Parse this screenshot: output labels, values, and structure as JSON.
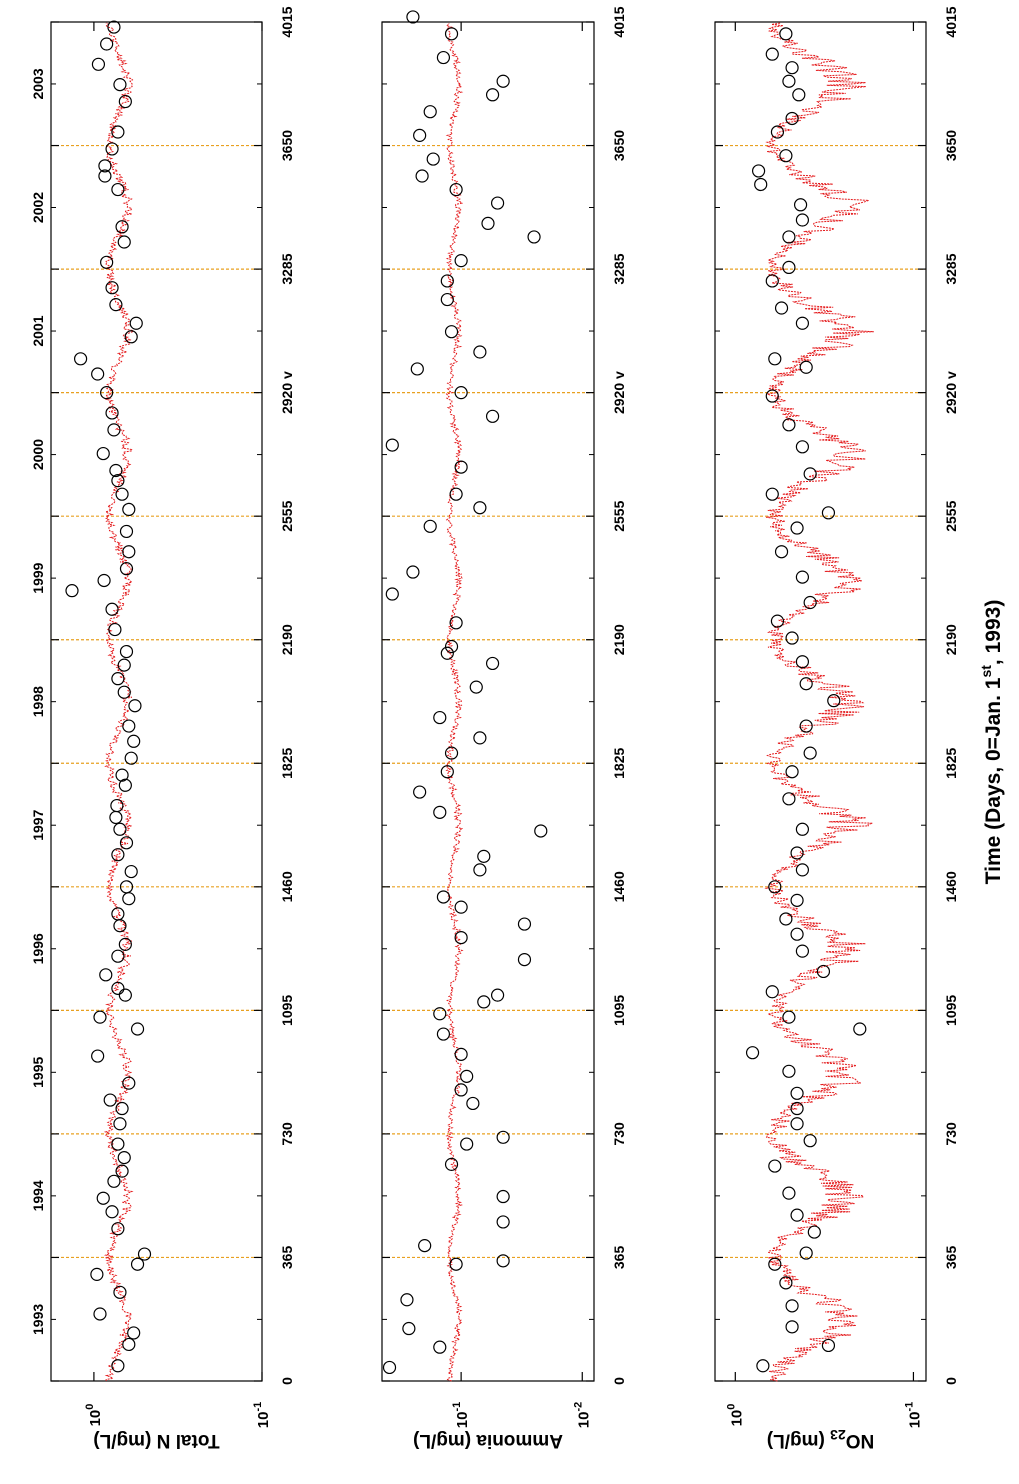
{
  "figure": {
    "time_axis_label": "Time (Days, 0=Jan. 1st, 1993)",
    "time_axis_label_main": "Time (Days, 0=Jan. 1",
    "time_axis_label_sup": "st",
    "time_axis_label_tail": ", 1993)",
    "day_ticks": [
      {
        "value": 0,
        "label": "0"
      },
      {
        "value": 365,
        "label": "365"
      },
      {
        "value": 730,
        "label": "730"
      },
      {
        "value": 1095,
        "label": "1095"
      },
      {
        "value": 1460,
        "label": "1460"
      },
      {
        "value": 1825,
        "label": "1825"
      },
      {
        "value": 2190,
        "label": "2190"
      },
      {
        "value": 2555,
        "label": "2555"
      },
      {
        "value": 2920,
        "label": "2920 v"
      },
      {
        "value": 3285,
        "label": "3285"
      },
      {
        "value": 3650,
        "label": "3650"
      },
      {
        "value": 4015,
        "label": "4015"
      }
    ],
    "year_ticks": [
      {
        "value": 182,
        "label": "1993"
      },
      {
        "value": 547,
        "label": "1994"
      },
      {
        "value": 912,
        "label": "1995"
      },
      {
        "value": 1277,
        "label": "1996"
      },
      {
        "value": 1642,
        "label": "1997"
      },
      {
        "value": 2007,
        "label": "1998"
      },
      {
        "value": 2372,
        "label": "1999"
      },
      {
        "value": 2737,
        "label": "2000"
      },
      {
        "value": 3102,
        "label": "2001"
      },
      {
        "value": 3467,
        "label": "2002"
      },
      {
        "value": 3832,
        "label": "2003"
      }
    ],
    "colors": {
      "model": "#e41a1c",
      "observed": "#000000",
      "year_line": "#e8a020"
    }
  },
  "chart_data": [
    {
      "type": "scatter",
      "ylabel": "Total N (mg/L)",
      "yscale": "log",
      "ylim": [
        0.1,
        1.8
      ],
      "yticks": [
        {
          "value": 1,
          "base": "10",
          "exp": "0"
        },
        {
          "value": 0.1,
          "base": "10",
          "exp": "-1"
        }
      ],
      "xlim": [
        0,
        4015
      ],
      "model_mean": 0.72,
      "model_amp": 0.09,
      "observed": [
        [
          45,
          0.72
        ],
        [
          108,
          0.62
        ],
        [
          142,
          0.58
        ],
        [
          198,
          0.92
        ],
        [
          262,
          0.7
        ],
        [
          315,
          0.96
        ],
        [
          345,
          0.55
        ],
        [
          375,
          0.5
        ],
        [
          450,
          0.72
        ],
        [
          500,
          0.78
        ],
        [
          540,
          0.88
        ],
        [
          590,
          0.76
        ],
        [
          620,
          0.68
        ],
        [
          660,
          0.66
        ],
        [
          700,
          0.72
        ],
        [
          760,
          0.7
        ],
        [
          805,
          0.68
        ],
        [
          830,
          0.8
        ],
        [
          880,
          0.62
        ],
        [
          960,
          0.95
        ],
        [
          1040,
          0.55
        ],
        [
          1075,
          0.92
        ],
        [
          1140,
          0.65
        ],
        [
          1160,
          0.72
        ],
        [
          1200,
          0.85
        ],
        [
          1255,
          0.72
        ],
        [
          1290,
          0.65
        ],
        [
          1345,
          0.7
        ],
        [
          1380,
          0.72
        ],
        [
          1425,
          0.62
        ],
        [
          1460,
          0.64
        ],
        [
          1505,
          0.6
        ],
        [
          1555,
          0.72
        ],
        [
          1590,
          0.64
        ],
        [
          1630,
          0.7
        ],
        [
          1665,
          0.74
        ],
        [
          1700,
          0.73
        ],
        [
          1760,
          0.65
        ],
        [
          1790,
          0.68
        ],
        [
          1840,
          0.6
        ],
        [
          1890,
          0.58
        ],
        [
          1935,
          0.62
        ],
        [
          1995,
          0.57
        ],
        [
          2035,
          0.66
        ],
        [
          2075,
          0.72
        ],
        [
          2115,
          0.66
        ],
        [
          2155,
          0.64
        ],
        [
          2220,
          0.75
        ],
        [
          2280,
          0.78
        ],
        [
          2335,
          1.35
        ],
        [
          2365,
          0.87
        ],
        [
          2400,
          0.64
        ],
        [
          2450,
          0.62
        ],
        [
          2510,
          0.64
        ],
        [
          2575,
          0.62
        ],
        [
          2620,
          0.68
        ],
        [
          2660,
          0.72
        ],
        [
          2690,
          0.74
        ],
        [
          2740,
          0.88
        ],
        [
          2810,
          0.76
        ],
        [
          2860,
          0.78
        ],
        [
          2920,
          0.84
        ],
        [
          2975,
          0.95
        ],
        [
          3020,
          1.2
        ],
        [
          3085,
          0.6
        ],
        [
          3125,
          0.56
        ],
        [
          3180,
          0.74
        ],
        [
          3230,
          0.78
        ],
        [
          3305,
          0.84
        ],
        [
          3365,
          0.66
        ],
        [
          3410,
          0.68
        ],
        [
          3520,
          0.72
        ],
        [
          3560,
          0.86
        ],
        [
          3590,
          0.86
        ],
        [
          3640,
          0.78
        ],
        [
          3690,
          0.72
        ],
        [
          3780,
          0.65
        ],
        [
          3830,
          0.7
        ],
        [
          3890,
          0.94
        ],
        [
          3950,
          0.84
        ],
        [
          4000,
          0.76
        ]
      ]
    },
    {
      "type": "scatter",
      "ylabel": "Ammonia (mg/L)",
      "yscale": "log",
      "ylim": [
        0.008,
        0.45
      ],
      "yticks": [
        {
          "value": 0.1,
          "base": "10",
          "exp": "-1"
        },
        {
          "value": 0.01,
          "base": "10",
          "exp": "-2"
        }
      ],
      "xlim": [
        0,
        4015
      ],
      "model_mean": 0.115,
      "model_amp": 0.01,
      "observed": [
        [
          40,
          0.39
        ],
        [
          100,
          0.15
        ],
        [
          155,
          0.27
        ],
        [
          240,
          0.28
        ],
        [
          345,
          0.11
        ],
        [
          355,
          0.045
        ],
        [
          400,
          0.2
        ],
        [
          470,
          0.045
        ],
        [
          545,
          0.045
        ],
        [
          640,
          0.12
        ],
        [
          700,
          0.09
        ],
        [
          720,
          0.045
        ],
        [
          820,
          0.08
        ],
        [
          860,
          0.1
        ],
        [
          900,
          0.09
        ],
        [
          965,
          0.1
        ],
        [
          1025,
          0.14
        ],
        [
          1085,
          0.15
        ],
        [
          1120,
          0.065
        ],
        [
          1140,
          0.05
        ],
        [
          1245,
          0.03
        ],
        [
          1310,
          0.1
        ],
        [
          1350,
          0.03
        ],
        [
          1400,
          0.1
        ],
        [
          1430,
          0.14
        ],
        [
          1510,
          0.07
        ],
        [
          1550,
          0.065
        ],
        [
          1625,
          0.022
        ],
        [
          1680,
          0.15
        ],
        [
          1740,
          0.22
        ],
        [
          1800,
          0.13
        ],
        [
          1855,
          0.12
        ],
        [
          1900,
          0.07
        ],
        [
          1960,
          0.15
        ],
        [
          2050,
          0.075
        ],
        [
          2120,
          0.055
        ],
        [
          2150,
          0.13
        ],
        [
          2170,
          0.12
        ],
        [
          2240,
          0.11
        ],
        [
          2325,
          0.37
        ],
        [
          2390,
          0.25
        ],
        [
          2525,
          0.18
        ],
        [
          2580,
          0.07
        ],
        [
          2620,
          0.11
        ],
        [
          2700,
          0.1
        ],
        [
          2765,
          0.37
        ],
        [
          2850,
          0.055
        ],
        [
          2920,
          0.1
        ],
        [
          2990,
          0.23
        ],
        [
          3040,
          0.07
        ],
        [
          3100,
          0.12
        ],
        [
          3195,
          0.13
        ],
        [
          3250,
          0.13
        ],
        [
          3310,
          0.1
        ],
        [
          3380,
          0.025
        ],
        [
          3420,
          0.06
        ],
        [
          3480,
          0.05
        ],
        [
          3520,
          0.11
        ],
        [
          3560,
          0.21
        ],
        [
          3610,
          0.17
        ],
        [
          3680,
          0.22
        ],
        [
          3750,
          0.18
        ],
        [
          3800,
          0.055
        ],
        [
          3840,
          0.045
        ],
        [
          3910,
          0.14
        ],
        [
          3980,
          0.12
        ],
        [
          4030,
          0.25
        ]
      ]
    },
    {
      "type": "scatter",
      "ylabel": "NO23 (mg/L)",
      "ylabel_main": "NO",
      "ylabel_sub": "23",
      "ylabel_tail": " (mg/L)",
      "yscale": "log",
      "ylim": [
        0.085,
        1.3
      ],
      "yticks": [
        {
          "value": 1,
          "base": "10",
          "exp": "0"
        },
        {
          "value": 0.1,
          "base": "10",
          "exp": "-1"
        }
      ],
      "xlim": [
        0,
        4015
      ],
      "model_mean": 0.42,
      "model_amp": 0.18,
      "observed": [
        [
          45,
          0.7
        ],
        [
          105,
          0.3
        ],
        [
          160,
          0.48
        ],
        [
          222,
          0.48
        ],
        [
          290,
          0.52
        ],
        [
          345,
          0.6
        ],
        [
          378,
          0.4
        ],
        [
          440,
          0.36
        ],
        [
          490,
          0.45
        ],
        [
          555,
          0.5
        ],
        [
          635,
          0.6
        ],
        [
          710,
          0.38
        ],
        [
          760,
          0.45
        ],
        [
          805,
          0.45
        ],
        [
          850,
          0.45
        ],
        [
          915,
          0.5
        ],
        [
          970,
          0.8
        ],
        [
          1040,
          0.2
        ],
        [
          1075,
          0.5
        ],
        [
          1150,
          0.62
        ],
        [
          1210,
          0.32
        ],
        [
          1270,
          0.42
        ],
        [
          1320,
          0.45
        ],
        [
          1365,
          0.52
        ],
        [
          1420,
          0.45
        ],
        [
          1460,
          0.6
        ],
        [
          1510,
          0.42
        ],
        [
          1560,
          0.45
        ],
        [
          1630,
          0.42
        ],
        [
          1720,
          0.5
        ],
        [
          1800,
          0.48
        ],
        [
          1855,
          0.38
        ],
        [
          1935,
          0.4
        ],
        [
          2010,
          0.28
        ],
        [
          2060,
          0.4
        ],
        [
          2125,
          0.42
        ],
        [
          2195,
          0.48
        ],
        [
          2245,
          0.58
        ],
        [
          2300,
          0.38
        ],
        [
          2375,
          0.42
        ],
        [
          2450,
          0.55
        ],
        [
          2520,
          0.45
        ],
        [
          2565,
          0.3
        ],
        [
          2620,
          0.62
        ],
        [
          2680,
          0.38
        ],
        [
          2760,
          0.42
        ],
        [
          2825,
          0.5
        ],
        [
          2910,
          0.62
        ],
        [
          2995,
          0.4
        ],
        [
          3020,
          0.6
        ],
        [
          3125,
          0.42
        ],
        [
          3170,
          0.55
        ],
        [
          3250,
          0.62
        ],
        [
          3290,
          0.5
        ],
        [
          3380,
          0.5
        ],
        [
          3430,
          0.42
        ],
        [
          3475,
          0.43
        ],
        [
          3535,
          0.72
        ],
        [
          3575,
          0.74
        ],
        [
          3620,
          0.52
        ],
        [
          3690,
          0.58
        ],
        [
          3730,
          0.48
        ],
        [
          3800,
          0.44
        ],
        [
          3840,
          0.5
        ],
        [
          3880,
          0.48
        ],
        [
          3920,
          0.62
        ],
        [
          3980,
          0.52
        ]
      ]
    }
  ]
}
